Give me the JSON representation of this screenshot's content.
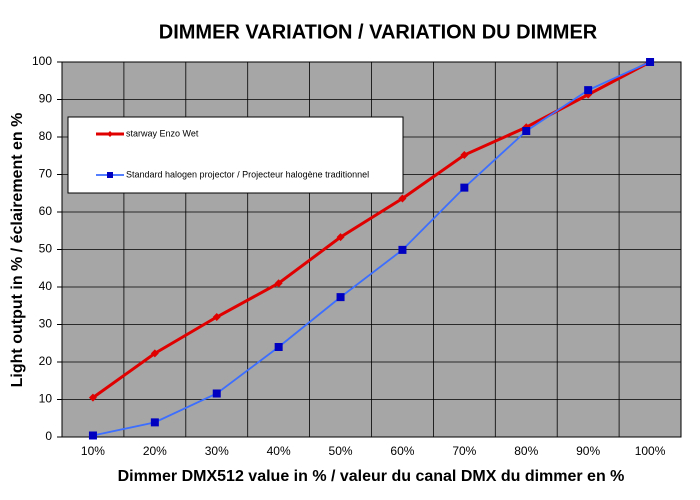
{
  "chart_data": {
    "type": "line",
    "title": "DIMMER VARIATION / VARIATION DU DIMMER",
    "x_label": "Dimmer DMX512 value in % / valeur du canal DMX du dimmer en %",
    "y_label": "Light output in % / éclairement en %",
    "categories": [
      "10%",
      "20%",
      "30%",
      "40%",
      "50%",
      "60%",
      "70%",
      "80%",
      "90%",
      "100%"
    ],
    "series": [
      {
        "name": "starway Enzo Wet",
        "color": "#e00000",
        "marker": "diamond",
        "values": [
          10.5,
          22.3,
          32,
          41,
          53.3,
          63.6,
          75.2,
          82.6,
          91.3,
          100
        ]
      },
      {
        "name": "Standard halogen projector / Projecteur halogène traditionnel",
        "color": "#3c6eff",
        "marker": "square",
        "values": [
          0.4,
          3.9,
          11.6,
          24,
          37.3,
          49.9,
          66.5,
          81.6,
          92.5,
          100
        ]
      }
    ],
    "ylim": [
      0,
      100
    ],
    "yticks": [
      0,
      10,
      20,
      30,
      40,
      50,
      60,
      70,
      80,
      90,
      100
    ],
    "grid": true,
    "legend": "upper left",
    "plot_background": "#a6a6a6"
  }
}
